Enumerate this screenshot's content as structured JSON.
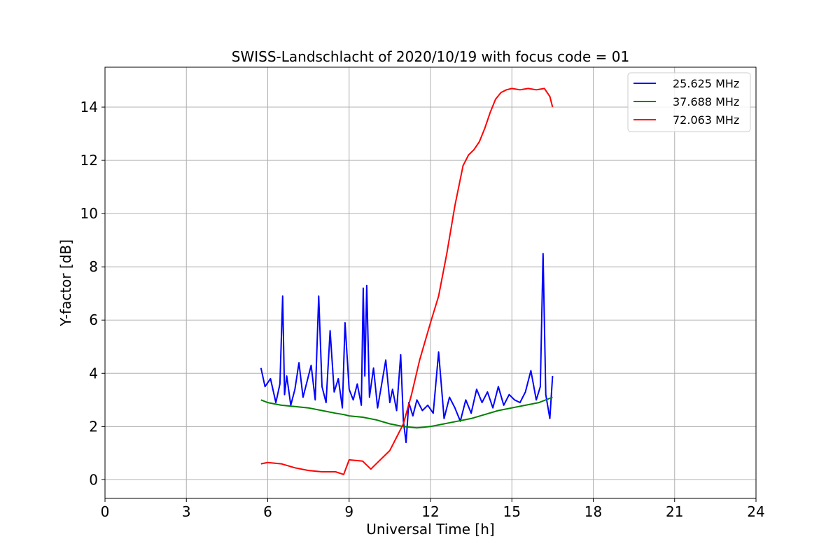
{
  "chart_data": {
    "type": "line",
    "title": "SWISS-Landschlacht of 2020/10/19 with focus code = 01",
    "xlabel": "Universal Time [h]",
    "ylabel": "Y-factor [dB]",
    "xlim": [
      0,
      24
    ],
    "ylim": [
      -0.7,
      15.5
    ],
    "xticks": [
      "0",
      "3",
      "6",
      "9",
      "12",
      "15",
      "18",
      "21",
      "24"
    ],
    "yticks": [
      "0",
      "2",
      "4",
      "6",
      "8",
      "10",
      "12",
      "14"
    ],
    "grid": true,
    "legend_position": "top-right",
    "series": [
      {
        "name": "25.625 MHz",
        "color": "#0000ff",
        "x": [
          5.75,
          5.9,
          6.1,
          6.3,
          6.45,
          6.55,
          6.62,
          6.7,
          6.85,
          7.0,
          7.15,
          7.3,
          7.45,
          7.6,
          7.75,
          7.88,
          8.0,
          8.15,
          8.3,
          8.45,
          8.6,
          8.75,
          8.85,
          9.0,
          9.15,
          9.3,
          9.45,
          9.52,
          9.58,
          9.65,
          9.75,
          9.9,
          10.05,
          10.2,
          10.35,
          10.5,
          10.6,
          10.75,
          10.9,
          11.0,
          11.1,
          11.2,
          11.35,
          11.5,
          11.7,
          11.9,
          12.1,
          12.3,
          12.5,
          12.7,
          12.9,
          13.1,
          13.3,
          13.5,
          13.7,
          13.9,
          14.1,
          14.3,
          14.5,
          14.7,
          14.9,
          15.1,
          15.3,
          15.5,
          15.7,
          15.9,
          16.05,
          16.15,
          16.25,
          16.4,
          16.5
        ],
        "y": [
          4.2,
          3.5,
          3.8,
          2.9,
          3.6,
          6.9,
          3.2,
          3.9,
          2.8,
          3.4,
          4.4,
          3.1,
          3.7,
          4.3,
          3.0,
          6.9,
          3.5,
          2.9,
          5.6,
          3.3,
          3.8,
          2.7,
          5.9,
          3.4,
          3.0,
          3.6,
          2.8,
          7.2,
          3.9,
          7.3,
          3.1,
          4.2,
          2.7,
          3.6,
          4.5,
          2.9,
          3.4,
          2.6,
          4.7,
          2.2,
          1.4,
          2.9,
          2.4,
          3.0,
          2.6,
          2.8,
          2.5,
          4.8,
          2.3,
          3.1,
          2.7,
          2.2,
          3.0,
          2.5,
          3.4,
          2.9,
          3.3,
          2.7,
          3.5,
          2.8,
          3.2,
          3.0,
          2.9,
          3.3,
          4.1,
          3.0,
          3.5,
          8.5,
          3.2,
          2.3,
          3.9
        ]
      },
      {
        "name": "37.688 MHz",
        "color": "#008000",
        "x": [
          5.75,
          6.0,
          6.5,
          7.0,
          7.5,
          8.0,
          8.5,
          8.8,
          9.0,
          9.5,
          10.0,
          10.5,
          11.0,
          11.5,
          12.0,
          12.5,
          13.0,
          13.5,
          14.0,
          14.5,
          15.0,
          15.5,
          16.0,
          16.5
        ],
        "y": [
          3.0,
          2.9,
          2.8,
          2.75,
          2.7,
          2.6,
          2.5,
          2.45,
          2.4,
          2.35,
          2.25,
          2.1,
          2.0,
          1.95,
          2.0,
          2.1,
          2.2,
          2.3,
          2.45,
          2.6,
          2.7,
          2.8,
          2.9,
          3.1
        ]
      },
      {
        "name": "72.063 MHz",
        "color": "#ff0000",
        "x": [
          5.75,
          6.0,
          6.5,
          7.0,
          7.5,
          8.0,
          8.5,
          8.8,
          9.0,
          9.5,
          9.8,
          10.0,
          10.5,
          11.0,
          11.3,
          11.6,
          12.0,
          12.3,
          12.6,
          12.9,
          13.2,
          13.4,
          13.6,
          13.8,
          14.0,
          14.2,
          14.4,
          14.6,
          14.8,
          15.0,
          15.3,
          15.6,
          15.9,
          16.2,
          16.4,
          16.5
        ],
        "y": [
          0.6,
          0.65,
          0.6,
          0.45,
          0.35,
          0.3,
          0.3,
          0.2,
          0.75,
          0.7,
          0.4,
          0.6,
          1.1,
          2.1,
          3.2,
          4.5,
          5.9,
          6.9,
          8.5,
          10.3,
          11.8,
          12.2,
          12.4,
          12.7,
          13.2,
          13.8,
          14.3,
          14.55,
          14.65,
          14.7,
          14.65,
          14.7,
          14.65,
          14.7,
          14.4,
          14.0
        ]
      }
    ]
  }
}
